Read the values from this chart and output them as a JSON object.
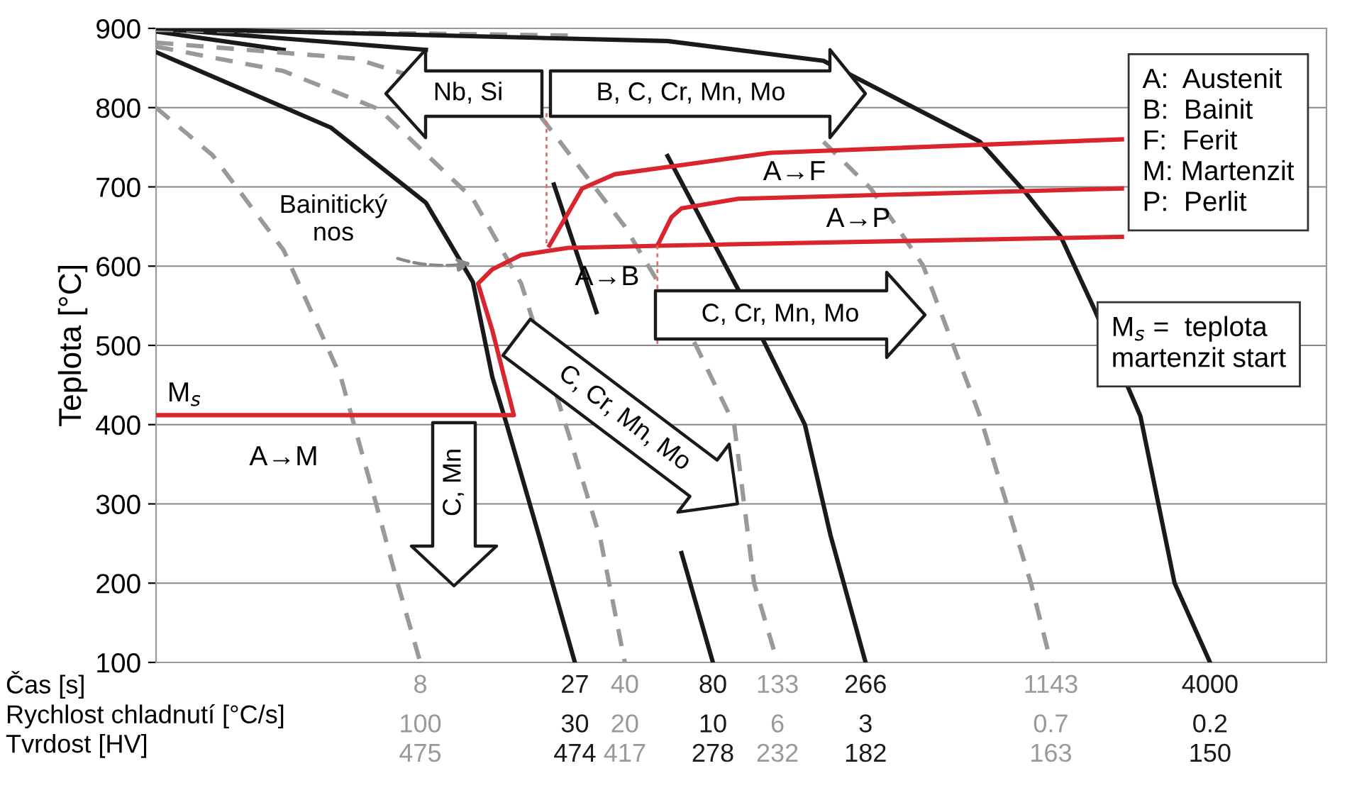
{
  "chart_data": {
    "type": "line",
    "ylabel": "Teplota [°C]",
    "xlabel": "Čas [s]\nRychlost chladnutí [°C/s]\nTvrdost [HV]",
    "log": "x",
    "grid": "y",
    "xlim": [
      1,
      10000
    ],
    "xticks": [
      8,
      27,
      40,
      80,
      133,
      266,
      1143,
      4000
    ],
    "ylim": [
      100,
      900
    ],
    "yticks": [
      100,
      200,
      300,
      400,
      500,
      600,
      700,
      800,
      900
    ],
    "series": [
      {
        "color": "#999999",
        "line_style": "dashed",
        "x": [
          1,
          1.56,
          2.73,
          4.28,
          5.65,
          6.69,
          8
        ],
        "values": [
          800,
          740,
          620,
          460,
          300,
          200,
          100
        ]
      },
      {
        "color": "#1a1a1a",
        "line_style": "solid",
        "x": [
          1,
          3.95,
          8.36,
          12.1,
          14.1,
          15.8,
          20.5,
          27
        ],
        "values": [
          870,
          775,
          680,
          580,
          460,
          400,
          256,
          100
        ]
      },
      {
        "color": "#999999",
        "line_style": "dashed",
        "x": [
          1,
          2.73,
          5.78,
          12.1,
          17.7,
          25.6,
          33,
          40
        ],
        "values": [
          877,
          846,
          798,
          685,
          578,
          390,
          256,
          100
        ]
      },
      {
        "color": "#1a1a1a",
        "line_style": "solid",
        "x": [
          1,
          2.73,
          6.69,
          22.9,
          32,
          44.7,
          62.5,
          80
        ],
        "values": [
          896,
          873,
          null,
          703,
          542,
          null,
          238,
          100
        ]
      },
      {
        "color": "#999999",
        "line_style": "dashed",
        "x": [
          1,
          4.78,
          20.5,
          40,
          70,
          94.6,
          110.6,
          133
        ],
        "values": [
          882,
          862,
          790,
          650,
          500,
          400,
          200,
          100
        ]
      },
      {
        "color": "#1a1a1a",
        "line_style": "solid",
        "x": [
          1,
          8.36,
          32,
          56,
          97.8,
          165,
          202,
          266
        ],
        "values": [
          900,
          873,
          null,
          739,
          570,
          400,
          260,
          100
        ]
      },
      {
        "color": "#999999",
        "line_style": "dashed",
        "x": [
          1,
          25.6,
          122,
          191,
          277,
          418,
          523,
          654,
          977,
          1143
        ],
        "values": [
          898,
          891,
          null,
          757,
          698,
          601,
          506,
          411,
          200,
          100
        ]
      },
      {
        "color": "#1a1a1a",
        "line_style": "solid",
        "x": [
          1,
          56,
          191,
          654,
          946,
          1237,
          1600,
          2312,
          3027,
          4000
        ],
        "values": [
          900,
          884,
          859,
          757,
          691,
          637,
          548,
          411,
          200,
          100
        ]
      },
      {
        "color": "#d9262e",
        "line_style": "solid",
        "x": [
          1,
          16.7,
          14.1,
          12.6,
          14.1,
          17.7,
          25.6,
          56,
          2000
        ],
        "values": [
          412,
          412,
          519,
          578,
          596,
          614,
          623,
          626,
          637
        ]
      },
      {
        "color": "#d9262e",
        "line_style": "solid",
        "x": [
          22.1,
          28.6,
          37,
          70,
          126,
          2000
        ],
        "values": [
          626,
          698,
          716,
          730,
          743,
          760
        ]
      },
      {
        "color": "#d9262e",
        "line_style": "solid",
        "x": [
          51.7,
          57.8,
          62.5,
          97.8,
          2000
        ],
        "values": [
          626,
          662,
          673,
          685,
          698
        ]
      },
      {
        "color": "#e07070",
        "line_style": "dotted",
        "x": [
          21.6,
          21.6
        ],
        "values": [
          793,
          625
        ]
      },
      {
        "color": "#e07070",
        "line_style": "dotted",
        "x": [
          51.7,
          51.7
        ],
        "values": [
          626,
          500
        ]
      }
    ],
    "annotations": [
      "Nb, Si",
      "B, C, Cr, Mn, Mo",
      "C, Cr, Mn, Mo",
      "C, Cr, Mn, Mo",
      "C, Mn",
      "A→F",
      "A→P",
      "A→B",
      "A→M",
      "M$_{s}$",
      "Bainitický\nnos",
      "A:  Austenit\nB:  Bainit\nF:  Ferit\nM: Martenzit\nP:  Perlit",
      "M$_{s}$ =  teplota\nmartenzit start",
      {
        "text": "100\n475",
        "x": 8,
        "y": 100
      },
      {
        "text": "30\n474",
        "x": 27,
        "y": 100
      },
      {
        "text": "20\n417",
        "x": 40,
        "y": 100
      },
      {
        "text": "10\n278",
        "x": 80,
        "y": 100
      },
      {
        "text": "6\n232",
        "x": 133,
        "y": 100
      },
      {
        "text": "3\n182",
        "x": 266,
        "y": 100
      },
      {
        "text": "0.7\n163",
        "x": 1143,
        "y": 100
      },
      {
        "text": "0.2\n150",
        "x": 4000,
        "y": 100
      }
    ]
  }
}
